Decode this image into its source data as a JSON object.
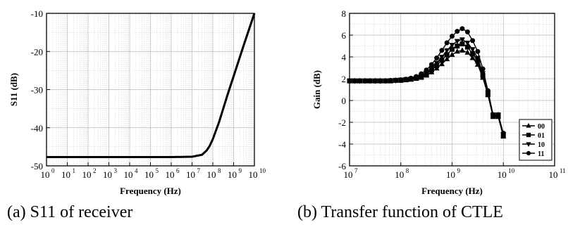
{
  "chart_data": [
    {
      "type": "line",
      "id": "a",
      "caption": "(a) S11 of receiver",
      "xlabel": "Frequency (Hz)",
      "ylabel": "S11 (dB)",
      "xscale": "log",
      "xlim": [
        1,
        10000000000
      ],
      "ylim": [
        -50,
        -10
      ],
      "x_tick_base": "10",
      "x_tick_exponents": [
        "0",
        "1",
        "2",
        "3",
        "4",
        "5",
        "6",
        "7",
        "8",
        "9",
        "10"
      ],
      "y_ticks": [
        "-50",
        "-40",
        "-30",
        "-20",
        "-10"
      ],
      "y_tick_values": [
        -50,
        -40,
        -30,
        -20,
        -10
      ],
      "grid": true,
      "series": [
        {
          "x": [
            1,
            1000000,
            10000000,
            30000000,
            50000000,
            70000000,
            100000000,
            200000000,
            500000000,
            1000000000,
            3000000000,
            10000000000
          ],
          "y": [
            -47.7,
            -47.7,
            -47.6,
            -47.1,
            -46.0,
            -44.8,
            -43.0,
            -38.5,
            -31.5,
            -26.5,
            -18.5,
            -10.0
          ],
          "color": "#000000"
        }
      ]
    },
    {
      "type": "line",
      "id": "b",
      "caption": "(b) Transfer function of CTLE",
      "xlabel": "Frequency (Hz)",
      "ylabel": "Gain (dB)",
      "xscale": "log",
      "xlim": [
        10000000,
        100000000000
      ],
      "ylim": [
        -6,
        8
      ],
      "x_tick_base": "10",
      "x_tick_exponents": [
        "7",
        "8",
        "9",
        "10",
        "11"
      ],
      "y_ticks": [
        "-6",
        "-4",
        "-2",
        "0",
        "2",
        "4",
        "6",
        "8"
      ],
      "y_tick_values": [
        -6,
        -4,
        -2,
        0,
        2,
        4,
        6,
        8
      ],
      "grid": true,
      "legend_position": "bottom-right",
      "x": [
        10000000,
        12600000,
        15800000,
        20000000,
        25100000,
        31600000,
        39800000,
        50100000,
        63100000,
        79400000,
        100000000,
        126000000,
        158000000,
        200000000,
        251000000,
        316000000,
        398000000,
        501000000,
        631000000,
        794000000,
        1000000000,
        1260000000,
        1580000000,
        2000000000,
        2510000000,
        3160000000,
        3980000000,
        5010000000,
        6310000000,
        7940000000,
        10000000000
      ],
      "series": [
        {
          "name": "00",
          "marker": "triangle-up",
          "values": [
            1.8,
            1.8,
            1.8,
            1.8,
            1.8,
            1.8,
            1.8,
            1.8,
            1.8,
            1.85,
            1.85,
            1.9,
            1.95,
            2.0,
            2.1,
            2.3,
            2.6,
            2.95,
            3.35,
            3.8,
            4.2,
            4.5,
            4.6,
            4.4,
            3.9,
            3.3,
            2.1,
            0.5,
            -1.5,
            -1.5,
            -3.3
          ]
        },
        {
          "name": "01",
          "marker": "square",
          "values": [
            1.8,
            1.8,
            1.8,
            1.8,
            1.8,
            1.8,
            1.8,
            1.8,
            1.8,
            1.85,
            1.85,
            1.9,
            1.95,
            2.05,
            2.2,
            2.4,
            2.8,
            3.2,
            3.7,
            4.2,
            4.7,
            5.0,
            5.2,
            4.9,
            4.3,
            3.6,
            2.3,
            0.6,
            -1.4,
            -1.4,
            -3.2
          ]
        },
        {
          "name": "10",
          "marker": "triangle-down",
          "values": [
            1.8,
            1.8,
            1.8,
            1.8,
            1.8,
            1.8,
            1.8,
            1.8,
            1.85,
            1.85,
            1.9,
            1.95,
            2.0,
            2.1,
            2.3,
            2.55,
            2.95,
            3.45,
            4.0,
            4.6,
            5.1,
            5.45,
            5.6,
            5.3,
            4.7,
            3.9,
            2.5,
            0.7,
            -1.3,
            -1.3,
            -3.1
          ]
        },
        {
          "name": "11",
          "marker": "circle",
          "values": [
            1.8,
            1.8,
            1.8,
            1.8,
            1.8,
            1.8,
            1.8,
            1.8,
            1.85,
            1.85,
            1.9,
            1.95,
            2.05,
            2.2,
            2.45,
            2.8,
            3.3,
            3.9,
            4.6,
            5.3,
            5.9,
            6.35,
            6.6,
            6.3,
            5.5,
            4.5,
            2.9,
            0.9,
            -1.3,
            -1.3,
            -3.0
          ]
        }
      ]
    }
  ]
}
